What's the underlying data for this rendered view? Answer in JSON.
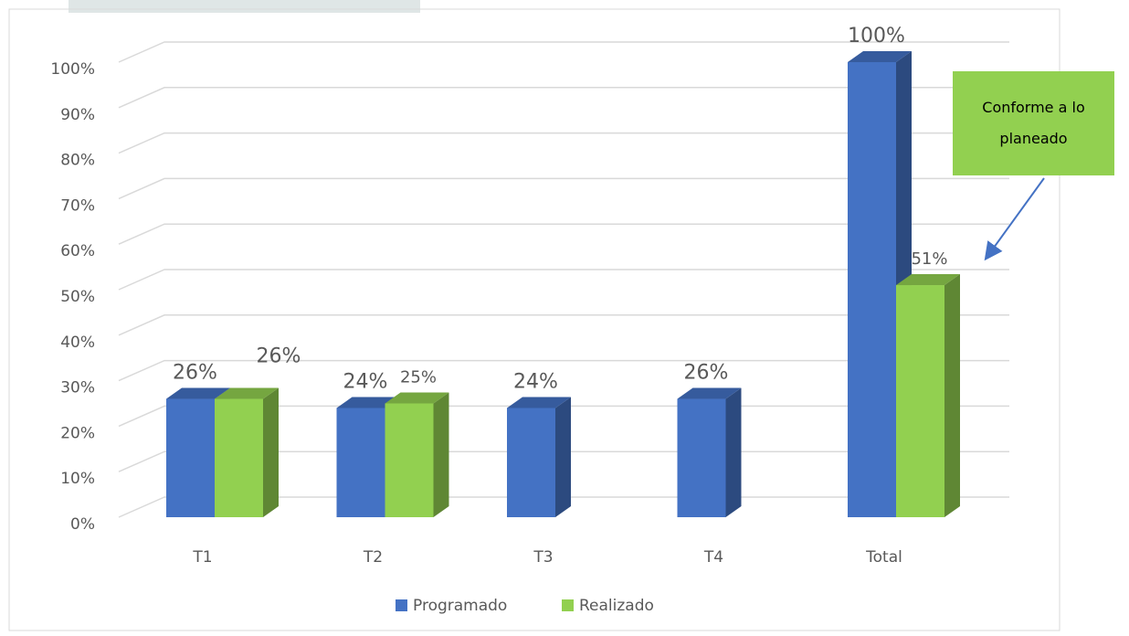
{
  "chart_data": {
    "type": "bar3d",
    "categories": [
      "T1",
      "T2",
      "T3",
      "T4",
      "Total"
    ],
    "series": [
      {
        "name": "Programado",
        "color": "#4472c4",
        "values": [
          26,
          24,
          24,
          26,
          100
        ],
        "value_labels": [
          "26%",
          "24%",
          "24%",
          "26%",
          "100%"
        ]
      },
      {
        "name": "Realizado",
        "color": "#92d050",
        "values": [
          26,
          25,
          null,
          null,
          51
        ],
        "value_labels": [
          "26%",
          "25%",
          null,
          null,
          "51%"
        ]
      }
    ],
    "ylim": [
      0,
      100
    ],
    "yticks": [
      {
        "value": 0,
        "label": "0%"
      },
      {
        "value": 10,
        "label": "10%"
      },
      {
        "value": 20,
        "label": "20%"
      },
      {
        "value": 30,
        "label": "30%"
      },
      {
        "value": 40,
        "label": "40%"
      },
      {
        "value": 50,
        "label": "50%"
      },
      {
        "value": 60,
        "label": "60%"
      },
      {
        "value": 70,
        "label": "70%"
      },
      {
        "value": 80,
        "label": "80%"
      },
      {
        "value": 90,
        "label": "90%"
      },
      {
        "value": 100,
        "label": "100%"
      }
    ],
    "grid": true,
    "legend": "bottom",
    "annotation": "Conforme a lo planeado"
  }
}
